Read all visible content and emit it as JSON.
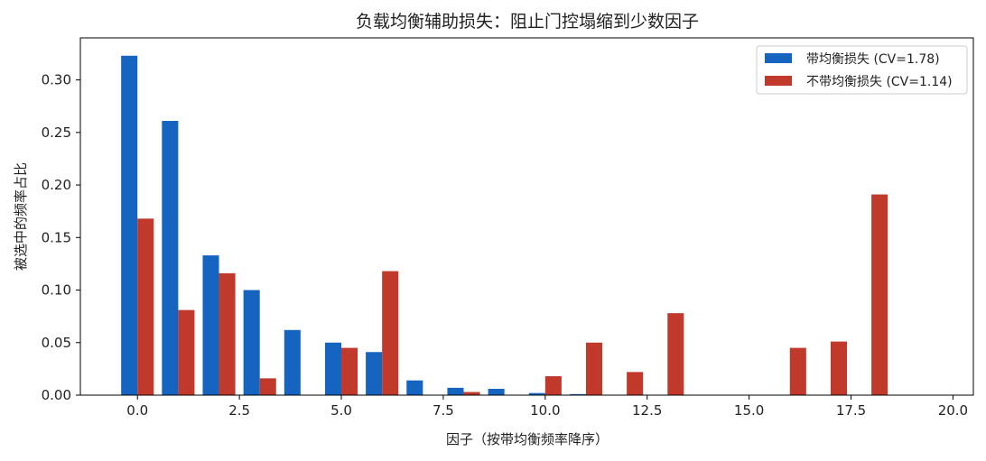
{
  "chart_data": {
    "type": "bar",
    "title": "负载均衡辅助损失：阻止门控塌缩到少数因子",
    "xlabel": "因子（按带均衡频率降序）",
    "ylabel": "被选中的频率占比",
    "xlim": [
      -1.4,
      20.5
    ],
    "ylim": [
      0,
      0.34
    ],
    "x_ticks": [
      0,
      2.5,
      5,
      7.5,
      10,
      12.5,
      15,
      17.5,
      20
    ],
    "x_tick_labels": [
      "0.0",
      "2.5",
      "5.0",
      "7.5",
      "10.0",
      "12.5",
      "15.0",
      "17.5",
      "20.0"
    ],
    "y_ticks": [
      0,
      0.05,
      0.1,
      0.15,
      0.2,
      0.25,
      0.3
    ],
    "y_tick_labels": [
      "0.00",
      "0.05",
      "0.10",
      "0.15",
      "0.20",
      "0.25",
      "0.30"
    ],
    "grid": false,
    "legend_position": "top-right",
    "bar_width": 0.4,
    "x": [
      0,
      1,
      2,
      3,
      4,
      5,
      6,
      7,
      8,
      9,
      10,
      11,
      12,
      13,
      14,
      15,
      16,
      17,
      18,
      19,
      20
    ],
    "series": [
      {
        "name": "带均衡损失 (CV=1.78)",
        "color": "#1565c0",
        "offset": -0.2,
        "values": [
          0.323,
          0.261,
          0.133,
          0.1,
          0.062,
          0.05,
          0.041,
          0.014,
          0.007,
          0.006,
          0.002,
          0.001,
          0,
          0,
          0,
          0,
          0,
          0,
          0,
          0,
          0
        ]
      },
      {
        "name": "不带均衡损失 (CV=1.14)",
        "color": "#c0392b",
        "offset": 0.2,
        "values": [
          0.168,
          0.081,
          0.116,
          0.016,
          0,
          0.045,
          0.118,
          0,
          0.003,
          0,
          0.018,
          0.05,
          0.022,
          0.078,
          0,
          0,
          0.045,
          0.051,
          0.191,
          0,
          0
        ]
      }
    ]
  }
}
